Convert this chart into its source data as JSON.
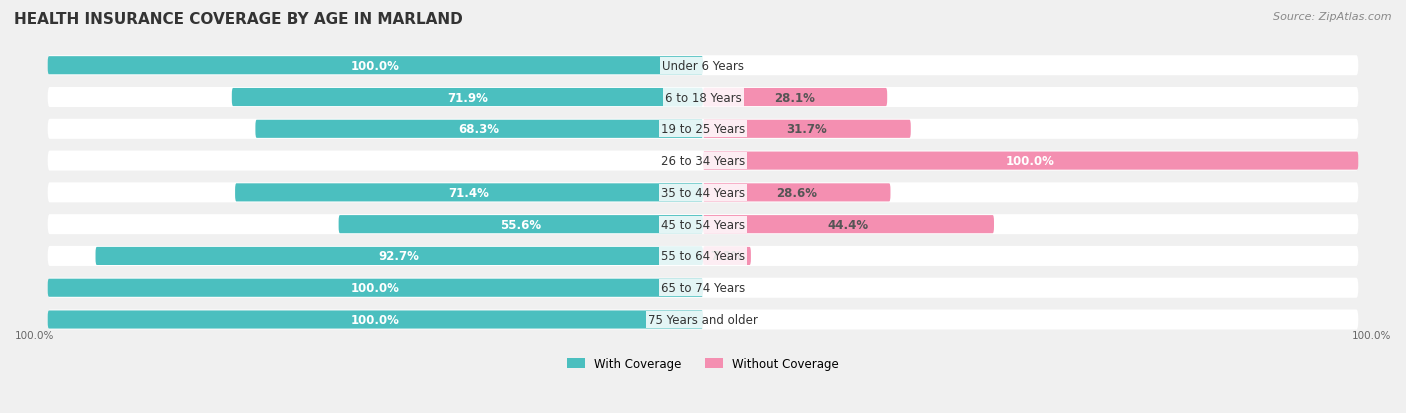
{
  "title": "HEALTH INSURANCE COVERAGE BY AGE IN MARLAND",
  "source": "Source: ZipAtlas.com",
  "categories": [
    "Under 6 Years",
    "6 to 18 Years",
    "19 to 25 Years",
    "26 to 34 Years",
    "35 to 44 Years",
    "45 to 54 Years",
    "55 to 64 Years",
    "65 to 74 Years",
    "75 Years and older"
  ],
  "with_coverage": [
    100.0,
    71.9,
    68.3,
    0.0,
    71.4,
    55.6,
    92.7,
    100.0,
    100.0
  ],
  "without_coverage": [
    0.0,
    28.1,
    31.7,
    100.0,
    28.6,
    44.4,
    7.3,
    0.0,
    0.0
  ],
  "color_with": "#4bbfbf",
  "color_without": "#f48fb1",
  "color_with_026": "#a8d8d8",
  "bg_color": "#f0f0f0",
  "bar_bg": "#ffffff",
  "title_fontsize": 11,
  "source_fontsize": 8,
  "label_fontsize": 8.5,
  "bar_height": 0.55,
  "xlim": [
    -100,
    100
  ]
}
